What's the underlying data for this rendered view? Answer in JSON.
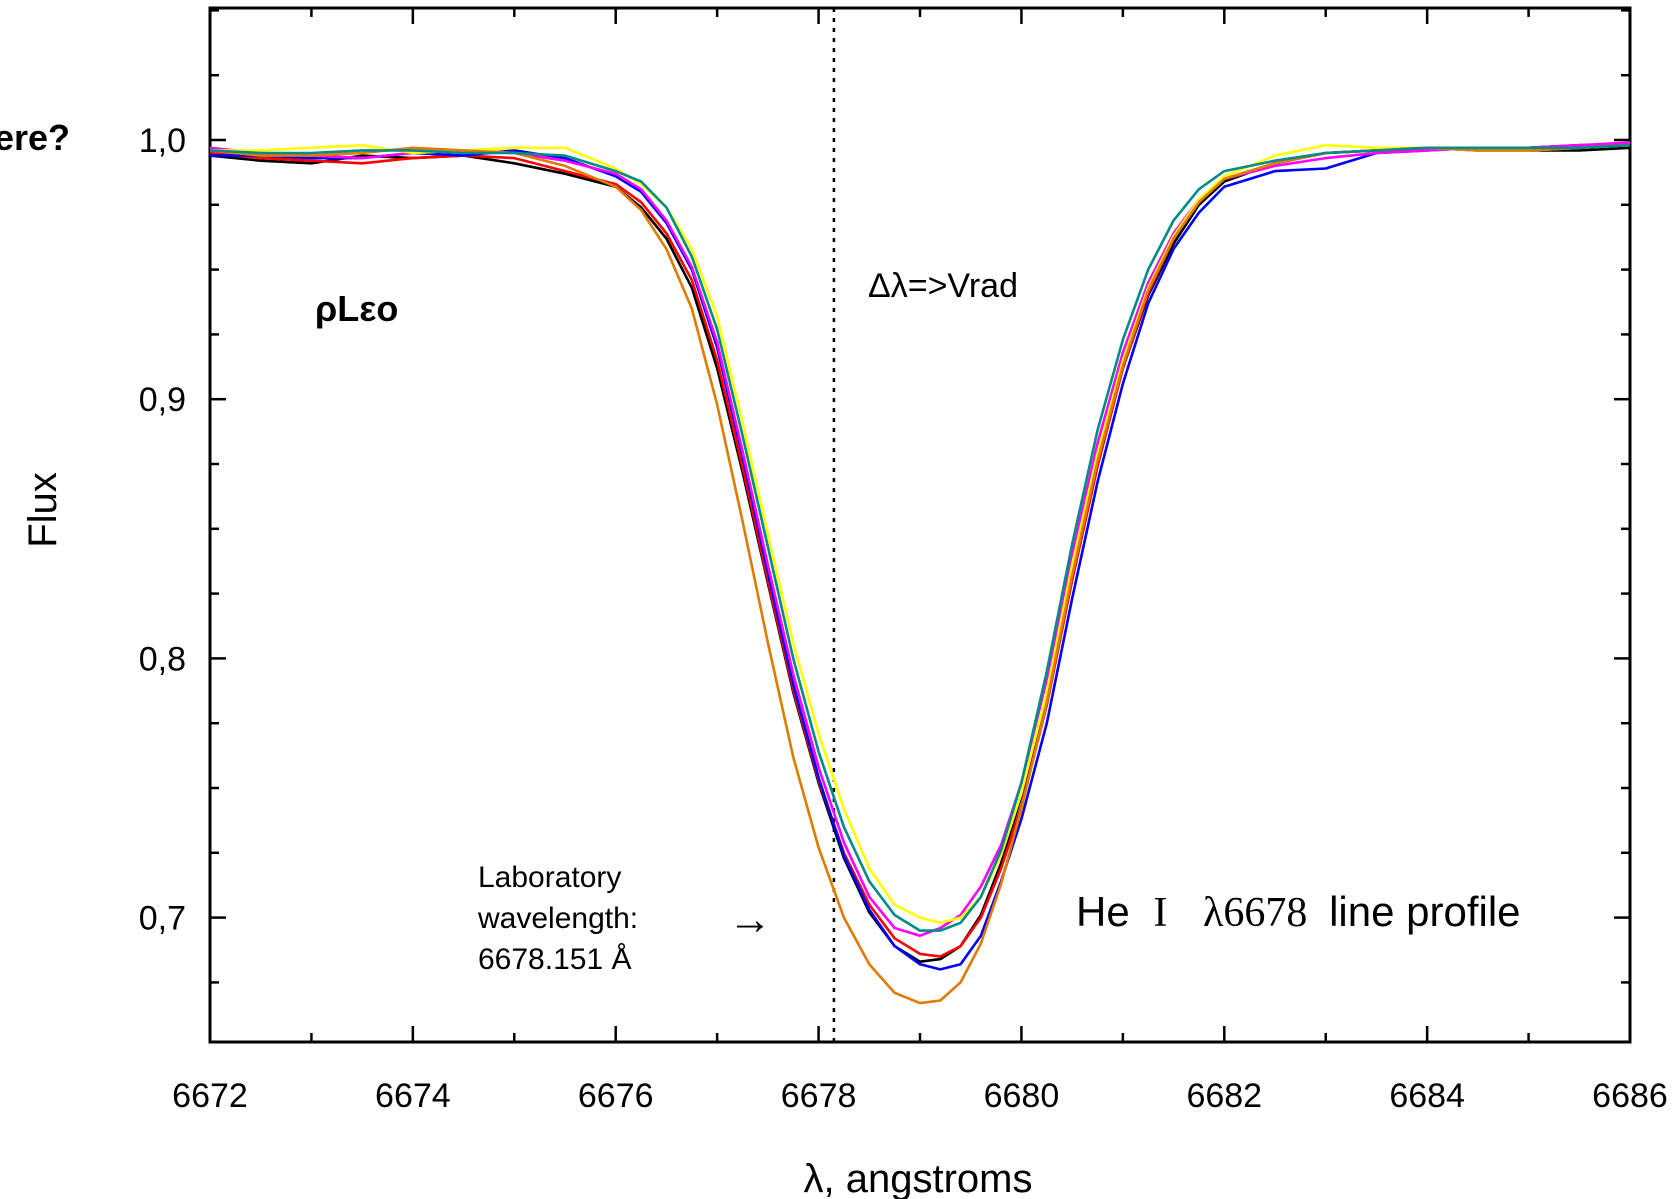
{
  "chart_data": {
    "type": "line",
    "xlabel": "λ, angstroms",
    "ylabel": "Flux",
    "xlim": [
      6672,
      6686
    ],
    "ylim": [
      0.65,
      1.05
    ],
    "xticks": [
      6672,
      6674,
      6676,
      6678,
      6680,
      6682,
      6684,
      6686
    ],
    "yticks": [
      0.7,
      0.8,
      0.9,
      1.0
    ],
    "ytick_labels": [
      "0,7",
      "0,8",
      "0,9",
      "1,0"
    ],
    "grid": false,
    "reference_line": {
      "x": 6678.151,
      "style": "dotted"
    },
    "annotations": {
      "clipped_left": "ere?",
      "star": "ρLεο",
      "delta": "Δλ=>Vrad",
      "lab_line1": "Laboratory",
      "lab_line2": "wavelength:",
      "lab_line3": "6678.151 Å",
      "arrow": "→",
      "profile_he": "He",
      "profile_roman": "I",
      "profile_lambda": "λ6678",
      "profile_rest": "line profile"
    },
    "x": [
      6672.0,
      6672.5,
      6673.0,
      6673.5,
      6674.0,
      6674.5,
      6675.0,
      6675.5,
      6676.0,
      6676.25,
      6676.5,
      6676.75,
      6677.0,
      6677.25,
      6677.5,
      6677.75,
      6678.0,
      6678.25,
      6678.5,
      6678.75,
      6679.0,
      6679.2,
      6679.4,
      6679.6,
      6679.8,
      6680.0,
      6680.25,
      6680.5,
      6680.75,
      6681.0,
      6681.25,
      6681.5,
      6681.75,
      6682.0,
      6682.5,
      6683.0,
      6683.5,
      6684.0,
      6684.5,
      6685.0,
      6685.5,
      6686.0
    ],
    "series": [
      {
        "color": "#000000",
        "values": [
          0.994,
          0.992,
          0.991,
          0.994,
          0.993,
          0.994,
          0.991,
          0.987,
          0.982,
          0.974,
          0.962,
          0.943,
          0.912,
          0.872,
          0.829,
          0.787,
          0.752,
          0.723,
          0.702,
          0.689,
          0.683,
          0.684,
          0.689,
          0.701,
          0.721,
          0.747,
          0.786,
          0.833,
          0.876,
          0.912,
          0.94,
          0.96,
          0.975,
          0.984,
          0.991,
          0.995,
          0.996,
          0.997,
          0.996,
          0.996,
          0.996,
          0.997
        ]
      },
      {
        "color": "#ff0000",
        "values": [
          0.995,
          0.993,
          0.992,
          0.991,
          0.993,
          0.994,
          0.993,
          0.988,
          0.983,
          0.976,
          0.964,
          0.946,
          0.915,
          0.874,
          0.83,
          0.788,
          0.753,
          0.725,
          0.705,
          0.692,
          0.686,
          0.685,
          0.689,
          0.7,
          0.719,
          0.743,
          0.782,
          0.83,
          0.874,
          0.912,
          0.941,
          0.962,
          0.976,
          0.985,
          0.991,
          0.995,
          0.996,
          0.997,
          0.997,
          0.997,
          0.998,
          0.998
        ]
      },
      {
        "color": "#0000ff",
        "values": [
          0.994,
          0.994,
          0.993,
          0.993,
          0.995,
          0.994,
          0.996,
          0.993,
          0.986,
          0.98,
          0.968,
          0.95,
          0.92,
          0.878,
          0.833,
          0.79,
          0.754,
          0.724,
          0.703,
          0.689,
          0.682,
          0.68,
          0.682,
          0.693,
          0.714,
          0.738,
          0.775,
          0.823,
          0.868,
          0.906,
          0.937,
          0.958,
          0.972,
          0.982,
          0.988,
          0.989,
          0.995,
          0.996,
          0.997,
          0.997,
          0.998,
          0.998
        ]
      },
      {
        "color": "#ff00ff",
        "values": [
          0.997,
          0.995,
          0.994,
          0.993,
          0.995,
          0.996,
          0.995,
          0.992,
          0.987,
          0.981,
          0.969,
          0.951,
          0.922,
          0.88,
          0.836,
          0.794,
          0.758,
          0.729,
          0.708,
          0.696,
          0.693,
          0.696,
          0.701,
          0.712,
          0.728,
          0.752,
          0.792,
          0.84,
          0.883,
          0.918,
          0.945,
          0.964,
          0.977,
          0.985,
          0.99,
          0.993,
          0.995,
          0.996,
          0.997,
          0.997,
          0.998,
          0.999
        ]
      },
      {
        "color": "#ffff00",
        "values": [
          0.996,
          0.996,
          0.997,
          0.998,
          0.995,
          0.996,
          0.997,
          0.997,
          0.989,
          0.983,
          0.974,
          0.958,
          0.932,
          0.891,
          0.848,
          0.806,
          0.771,
          0.742,
          0.719,
          0.705,
          0.7,
          0.698,
          0.7,
          0.708,
          0.724,
          0.748,
          0.787,
          0.836,
          0.879,
          0.915,
          0.943,
          0.963,
          0.977,
          0.986,
          0.994,
          0.998,
          0.997,
          0.997,
          0.996,
          0.996,
          0.997,
          0.998
        ]
      },
      {
        "color": "#e07b00",
        "values": [
          0.996,
          0.994,
          0.994,
          0.995,
          0.997,
          0.996,
          0.995,
          0.99,
          0.982,
          0.973,
          0.958,
          0.935,
          0.898,
          0.853,
          0.806,
          0.762,
          0.727,
          0.7,
          0.682,
          0.671,
          0.667,
          0.668,
          0.675,
          0.69,
          0.713,
          0.742,
          0.783,
          0.832,
          0.876,
          0.913,
          0.942,
          0.962,
          0.976,
          0.985,
          0.991,
          0.995,
          0.996,
          0.997,
          0.996,
          0.996,
          0.997,
          0.998
        ]
      },
      {
        "color": "#008b8b",
        "values": [
          0.996,
          0.995,
          0.995,
          0.996,
          0.996,
          0.995,
          0.995,
          0.994,
          0.988,
          0.984,
          0.974,
          0.955,
          0.927,
          0.886,
          0.843,
          0.8,
          0.764,
          0.735,
          0.714,
          0.701,
          0.695,
          0.695,
          0.698,
          0.708,
          0.726,
          0.752,
          0.795,
          0.844,
          0.888,
          0.923,
          0.95,
          0.969,
          0.981,
          0.988,
          0.992,
          0.995,
          0.996,
          0.997,
          0.997,
          0.997,
          0.997,
          0.998
        ]
      }
    ]
  }
}
